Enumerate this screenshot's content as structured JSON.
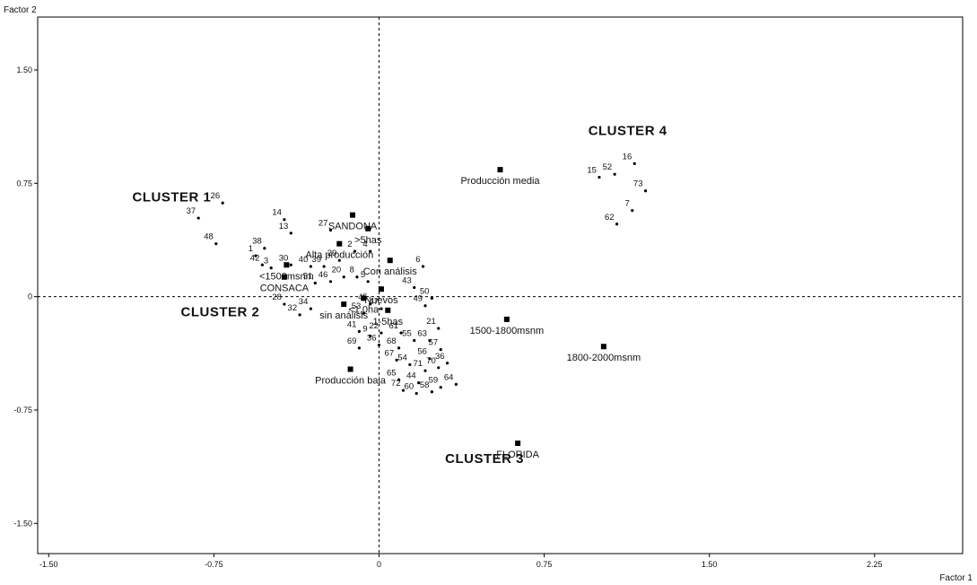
{
  "chart_data": {
    "type": "scatter",
    "xlabel": "Factor 1",
    "ylabel": "Factor 2",
    "xlim": [
      -1.55,
      2.65
    ],
    "ylim": [
      -1.7,
      1.85
    ],
    "xticks": [
      -1.5,
      -0.75,
      0,
      0.75,
      1.5,
      2.25
    ],
    "xtick_labels": [
      "-1.50",
      "-0.75",
      "0",
      "0.75",
      "1.50",
      "2.25"
    ],
    "yticks": [
      1.5,
      0.75,
      0,
      -0.75,
      -1.5
    ],
    "ytick_labels": [
      "1.50",
      "0.75",
      "0",
      "-0.75",
      "-1.50"
    ],
    "reference_lines": [
      {
        "axis": "x",
        "value": 0
      },
      {
        "axis": "y",
        "value": 0
      }
    ],
    "observations": [
      {
        "label": "26",
        "x": -0.71,
        "y": 0.62
      },
      {
        "label": "37",
        "x": -0.82,
        "y": 0.52
      },
      {
        "label": "48",
        "x": -0.74,
        "y": 0.35
      },
      {
        "label": "14",
        "x": -0.43,
        "y": 0.51
      },
      {
        "label": "13",
        "x": -0.4,
        "y": 0.42
      },
      {
        "label": "38",
        "x": -0.52,
        "y": 0.32
      },
      {
        "label": "27",
        "x": -0.22,
        "y": 0.44
      },
      {
        "label": "1",
        "x": -0.56,
        "y": 0.27
      },
      {
        "label": "42",
        "x": -0.53,
        "y": 0.21
      },
      {
        "label": "3",
        "x": -0.49,
        "y": 0.19
      },
      {
        "label": "30",
        "x": -0.4,
        "y": 0.21
      },
      {
        "label": "40",
        "x": -0.31,
        "y": 0.2
      },
      {
        "label": "39",
        "x": -0.25,
        "y": 0.2
      },
      {
        "label": "29",
        "x": -0.18,
        "y": 0.24
      },
      {
        "label": "2",
        "x": -0.11,
        "y": 0.3
      },
      {
        "label": "4",
        "x": -0.04,
        "y": 0.3
      },
      {
        "label": "51",
        "x": -0.29,
        "y": 0.09
      },
      {
        "label": "46",
        "x": -0.22,
        "y": 0.1
      },
      {
        "label": "20",
        "x": -0.16,
        "y": 0.13
      },
      {
        "label": "8",
        "x": -0.1,
        "y": 0.13
      },
      {
        "label": "5",
        "x": -0.05,
        "y": 0.1
      },
      {
        "label": "6",
        "x": 0.2,
        "y": 0.2
      },
      {
        "label": "43",
        "x": 0.16,
        "y": 0.06
      },
      {
        "label": "50",
        "x": 0.24,
        "y": -0.01
      },
      {
        "label": "28",
        "x": -0.43,
        "y": -0.05
      },
      {
        "label": "34",
        "x": -0.31,
        "y": -0.08
      },
      {
        "label": "32",
        "x": -0.36,
        "y": -0.12
      },
      {
        "label": "53",
        "x": -0.07,
        "y": -0.11
      },
      {
        "label": "45",
        "x": -0.04,
        "y": -0.05
      },
      {
        "label": "47",
        "x": 0.01,
        "y": -0.08
      },
      {
        "label": "49",
        "x": 0.21,
        "y": -0.06
      },
      {
        "label": "41",
        "x": -0.09,
        "y": -0.23
      },
      {
        "label": "9",
        "x": -0.04,
        "y": -0.26
      },
      {
        "label": "22",
        "x": 0.01,
        "y": -0.24
      },
      {
        "label": "61",
        "x": 0.1,
        "y": -0.24
      },
      {
        "label": "21",
        "x": 0.27,
        "y": -0.21
      },
      {
        "label": "55",
        "x": 0.16,
        "y": -0.29
      },
      {
        "label": "63",
        "x": 0.23,
        "y": -0.29
      },
      {
        "label": "69",
        "x": -0.09,
        "y": -0.34
      },
      {
        "label": "36",
        "x": 0.0,
        "y": -0.32
      },
      {
        "label": "68",
        "x": 0.09,
        "y": -0.34
      },
      {
        "label": "57",
        "x": 0.28,
        "y": -0.35
      },
      {
        "label": "67",
        "x": 0.08,
        "y": -0.42
      },
      {
        "label": "56",
        "x": 0.23,
        "y": -0.41
      },
      {
        "label": "36",
        "x": 0.31,
        "y": -0.44
      },
      {
        "label": "54",
        "x": 0.14,
        "y": -0.45
      },
      {
        "label": "70",
        "x": 0.27,
        "y": -0.47
      },
      {
        "label": "71",
        "x": 0.21,
        "y": -0.49
      },
      {
        "label": "65",
        "x": 0.09,
        "y": -0.55
      },
      {
        "label": "44",
        "x": 0.18,
        "y": -0.57
      },
      {
        "label": "64",
        "x": 0.35,
        "y": -0.58
      },
      {
        "label": "59",
        "x": 0.28,
        "y": -0.6
      },
      {
        "label": "72",
        "x": 0.11,
        "y": -0.62
      },
      {
        "label": "60",
        "x": 0.17,
        "y": -0.64
      },
      {
        "label": "58",
        "x": 0.24,
        "y": -0.63
      },
      {
        "label": "16",
        "x": 1.16,
        "y": 0.88
      },
      {
        "label": "52",
        "x": 1.07,
        "y": 0.81
      },
      {
        "label": "15",
        "x": 1.0,
        "y": 0.79
      },
      {
        "label": "73",
        "x": 1.21,
        "y": 0.7
      },
      {
        "label": "7",
        "x": 1.15,
        "y": 0.57
      },
      {
        "label": "62",
        "x": 1.08,
        "y": 0.48
      }
    ],
    "categories": [
      {
        "label": "SANDONA",
        "x": -0.12,
        "y": 0.54
      },
      {
        "label": ">5has",
        "x": -0.05,
        "y": 0.45
      },
      {
        "label": "Alta producción",
        "x": -0.18,
        "y": 0.35
      },
      {
        "label": "<1500msnm",
        "x": -0.42,
        "y": 0.21
      },
      {
        "label": "Con análisis",
        "x": 0.05,
        "y": 0.24
      },
      {
        "label": "CONSACA",
        "x": -0.43,
        "y": 0.13
      },
      {
        "label": "Nuevos",
        "x": 0.01,
        "y": 0.05
      },
      {
        "label": "<1,0ha",
        "x": -0.07,
        "y": -0.01
      },
      {
        "label": "sin análisis",
        "x": -0.16,
        "y": -0.05
      },
      {
        "label": "1-5has",
        "x": 0.04,
        "y": -0.09
      },
      {
        "label": "Producción media",
        "x": 0.55,
        "y": 0.84
      },
      {
        "label": "1500-1800msnm",
        "x": 0.58,
        "y": -0.15
      },
      {
        "label": "1800-2000msnm",
        "x": 1.02,
        "y": -0.33
      },
      {
        "label": "Producción baja",
        "x": -0.13,
        "y": -0.48
      },
      {
        "label": "FLORIDA",
        "x": 0.63,
        "y": -0.97
      }
    ],
    "clusters": [
      {
        "label": "CLUSTER 1",
        "x": -1.12,
        "y": 0.63
      },
      {
        "label": "CLUSTER 2",
        "x": -0.9,
        "y": -0.13
      },
      {
        "label": "CLUSTER 3",
        "x": 0.3,
        "y": -1.1
      },
      {
        "label": "CLUSTER 4",
        "x": 0.95,
        "y": 1.07
      }
    ]
  }
}
